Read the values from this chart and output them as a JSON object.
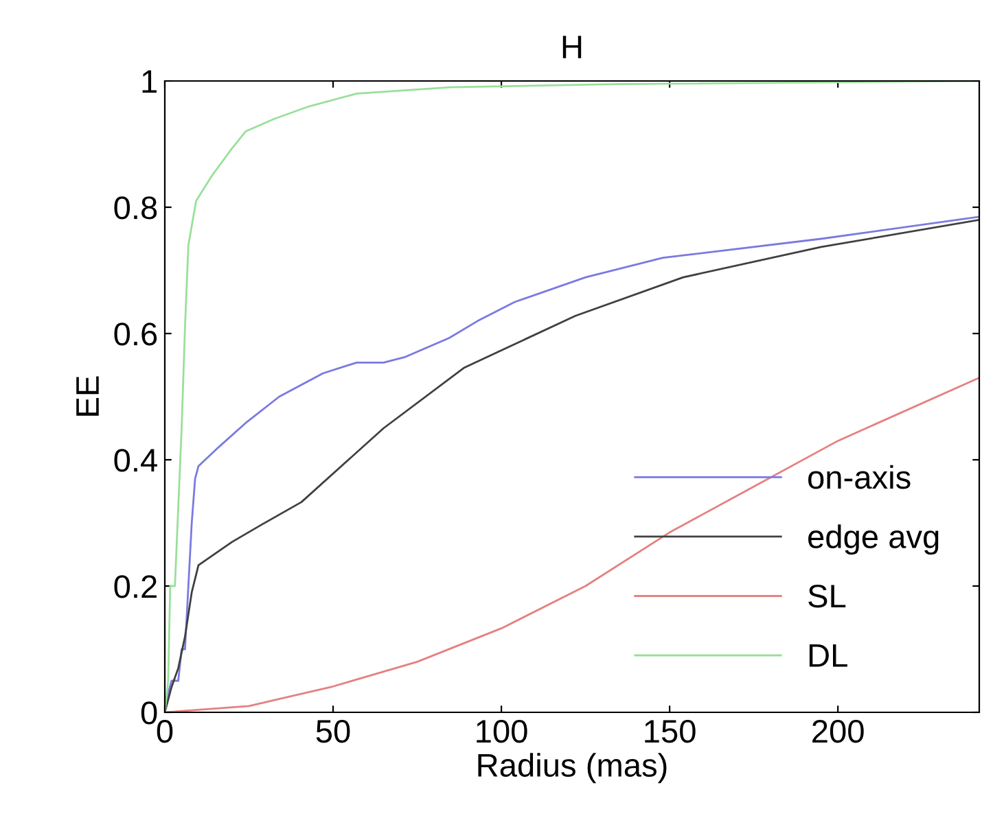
{
  "chart_data": {
    "type": "line",
    "title": "H",
    "xlabel": "Radius (mas)",
    "ylabel": "EE",
    "xlim": [
      0,
      242
    ],
    "ylim": [
      0,
      1
    ],
    "xticks": [
      0,
      50,
      100,
      150,
      200
    ],
    "yticks": [
      0,
      0.2,
      0.4,
      0.6,
      0.8,
      1
    ],
    "legend": "bottom right",
    "grid": false,
    "marker": "none",
    "line_style": "solid",
    "series": [
      {
        "name": "on-axis",
        "color": "#7a7ae0",
        "x": [
          0,
          1,
          2,
          4,
          5,
          6,
          7,
          8,
          9,
          10,
          16,
          24.4,
          34,
          47,
          57,
          65,
          71.5,
          84.5,
          93,
          104,
          125,
          148,
          195,
          242
        ],
        "values": [
          0,
          0.03,
          0.05,
          0.05,
          0.1,
          0.1,
          0.2,
          0.3,
          0.37,
          0.39,
          0.42,
          0.46,
          0.5,
          0.537,
          0.554,
          0.554,
          0.563,
          0.593,
          0.62,
          0.65,
          0.689,
          0.72,
          0.75,
          0.785
        ]
      },
      {
        "name": "edge avg",
        "color": "#404040",
        "x": [
          0,
          2,
          4,
          6,
          8,
          10,
          20,
          29,
          40.6,
          65,
          89,
          122,
          154,
          195,
          242
        ],
        "values": [
          0,
          0.04,
          0.07,
          0.12,
          0.19,
          0.233,
          0.27,
          0.298,
          0.333,
          0.45,
          0.546,
          0.628,
          0.689,
          0.737,
          0.78
        ]
      },
      {
        "name": "SL",
        "color": "#e58080",
        "x": [
          0,
          25,
          50,
          75,
          100,
          125,
          150,
          171,
          200,
          242
        ],
        "values": [
          0,
          0.01,
          0.041,
          0.08,
          0.133,
          0.2,
          0.285,
          0.346,
          0.43,
          0.53
        ]
      },
      {
        "name": "DL",
        "color": "#99e099",
        "x": [
          0,
          1,
          1.6,
          3,
          5,
          6,
          7,
          9.3,
          14,
          19.5,
          24,
          32.5,
          43,
          57,
          85,
          134,
          242
        ],
        "values": [
          0,
          0.05,
          0.2,
          0.2,
          0.45,
          0.61,
          0.74,
          0.81,
          0.85,
          0.89,
          0.92,
          0.94,
          0.96,
          0.98,
          0.99,
          0.995,
          1.0
        ]
      }
    ]
  }
}
